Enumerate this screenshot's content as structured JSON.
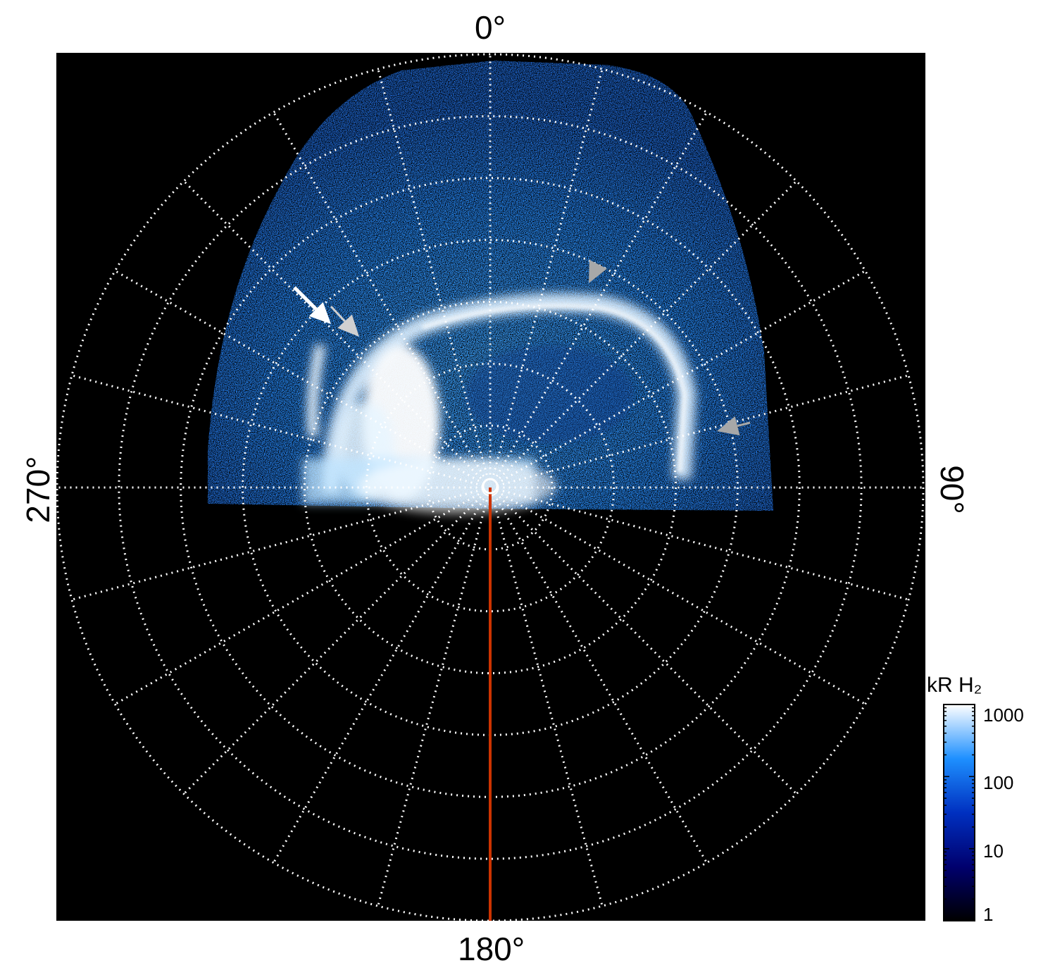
{
  "chart_data": {
    "type": "heatmap",
    "projection": "polar",
    "azimuth_labels": [
      "0°",
      "90°",
      "180°",
      "270°"
    ],
    "spoke_interval_deg": 15,
    "rings": 7,
    "colorbar": {
      "title": "kR H₂",
      "scale": "log",
      "range": [
        1,
        1000
      ],
      "ticks": [
        "1000",
        "100",
        "10",
        "1"
      ],
      "colors": [
        "#000000",
        "#00006e",
        "#0030c0",
        "#1e90ff",
        "#ffffff"
      ]
    },
    "annotation_arrows": [
      {
        "color": "#ffffff"
      },
      {
        "color": "#d0d0d0"
      },
      {
        "color": "#a8a8a8"
      },
      {
        "color": "#a8a8a8"
      }
    ],
    "meridian_line_color": "#cc3300",
    "grid": true
  }
}
